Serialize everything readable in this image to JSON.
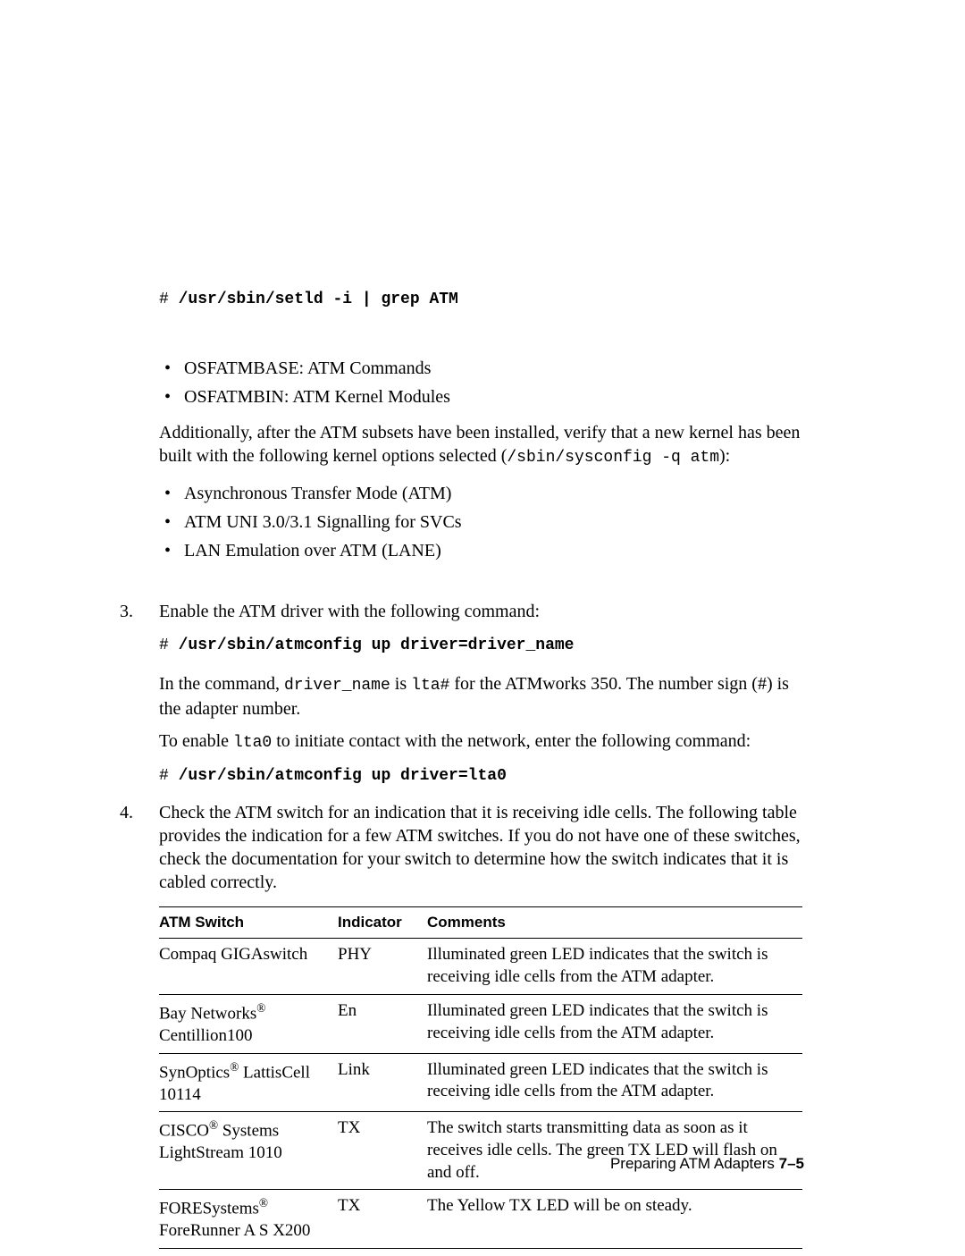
{
  "cmd1_prefix": "# ",
  "cmd1": "/usr/sbin/setld -i | grep ATM",
  "subsets": [
    "OSFATMBASE: ATM Commands",
    "OSFATMBIN: ATM Kernel Modules"
  ],
  "para_additional_a": "Additionally, after the ATM subsets have been installed, verify that a new kernel has been built with the following kernel options selected (",
  "para_additional_code": "/sbin/sysconfig -q atm",
  "para_additional_b": "):",
  "kernel_opts": [
    "Asynchronous Transfer Mode (ATM)",
    "ATM UNI 3.0/3.1 Signalling for SVCs",
    "LAN Emulation over ATM (LANE)"
  ],
  "step3_num": "3.",
  "step3_intro": "Enable the ATM driver with the following command:",
  "cmd2_prefix": "# ",
  "cmd2": "/usr/sbin/atmconfig up driver=driver_name",
  "step3_p2_a": "In the command, ",
  "step3_p2_code1": "driver_name",
  "step3_p2_b": " is ",
  "step3_p2_code2": "lta#",
  "step3_p2_c": " for the ATMworks 350. The number sign (#) is the adapter number.",
  "step3_p3_a": "To enable ",
  "step3_p3_code": "lta0",
  "step3_p3_b": " to initiate contact with the network, enter the following command:",
  "cmd3_prefix": "# ",
  "cmd3": "/usr/sbin/atmconfig up driver=lta0",
  "step4_num": "4.",
  "step4_intro": "Check the ATM switch for an indication that it is receiving idle cells. The following table provides the indication for a few ATM switches. If you do not have one of these switches, check the documentation for your switch to determine how the switch indicates that it is cabled correctly.",
  "table": {
    "headers": [
      "ATM Switch",
      "Indicator",
      "Comments"
    ],
    "rows": [
      {
        "switch_html": "Compaq GIGAswitch",
        "indicator": "PHY",
        "comment": "Illuminated green LED indicates that the switch is receiving idle cells from the ATM adapter."
      },
      {
        "switch_html": "Bay Networks<sup>®</sup> Centillion100",
        "indicator": "En",
        "comment": "Illuminated green LED indicates that the switch is receiving idle cells from the ATM adapter."
      },
      {
        "switch_html": "SynOptics<sup>®</sup> LattisCell 10114",
        "indicator": "Link",
        "comment": "Illuminated green LED indicates that the switch is receiving idle cells from the ATM adapter."
      },
      {
        "switch_html": "CISCO<sup>®</sup> Systems LightStream 1010",
        "indicator": "TX",
        "comment": "The switch starts transmitting data as soon as it receives idle cells.  The green TX LED will flash on and off."
      },
      {
        "switch_html": "FORESystems<sup>®</sup> ForeRunner A S X200",
        "indicator": "TX",
        "comment": "The Yellow TX LED will be on steady."
      }
    ]
  },
  "footer_label": "Preparing ATM Adapters  ",
  "footer_page": "7–5"
}
